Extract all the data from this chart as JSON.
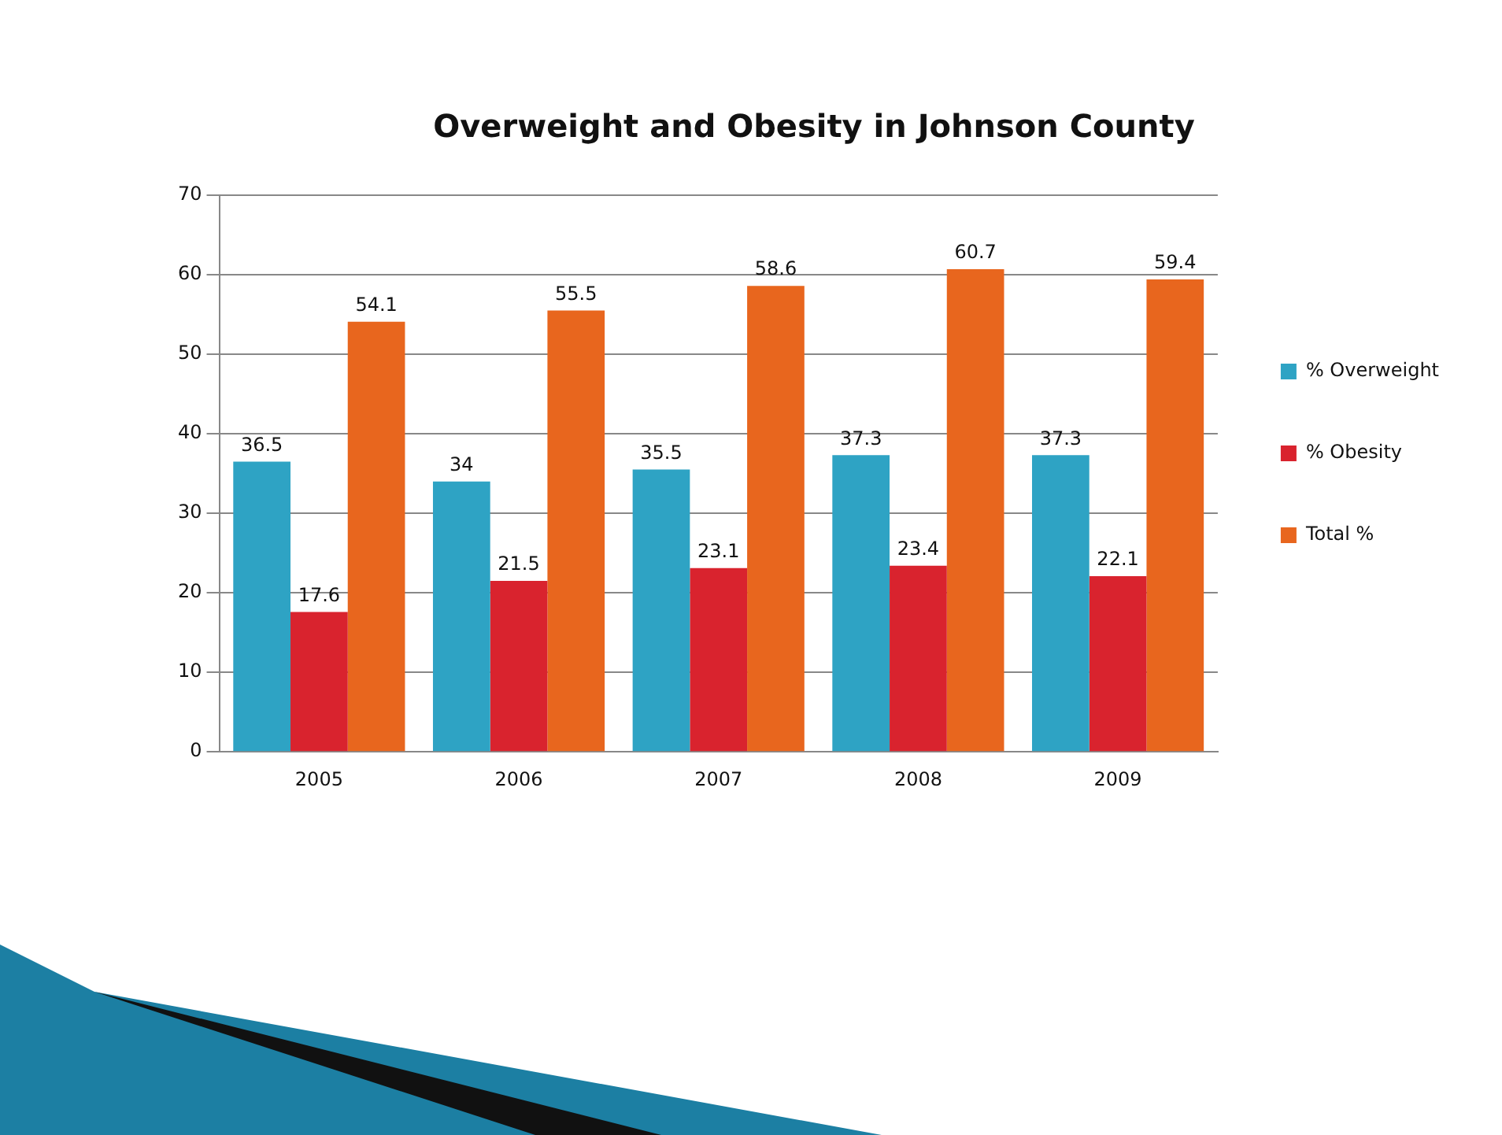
{
  "chart_data": {
    "type": "bar",
    "title": "Overweight and Obesity in Johnson County",
    "categories": [
      "2005",
      "2006",
      "2007",
      "2008",
      "2009"
    ],
    "series": [
      {
        "name": "% Overweight",
        "color": "#2ea3c4",
        "values": [
          36.5,
          34,
          35.5,
          37.3,
          37.3
        ]
      },
      {
        "name": "% Obesity",
        "color": "#d9232e",
        "values": [
          17.6,
          21.5,
          23.1,
          23.4,
          22.1
        ]
      },
      {
        "name": "Total %",
        "color": "#e8661e",
        "values": [
          54.1,
          55.5,
          58.6,
          60.7,
          59.4
        ]
      }
    ],
    "ylim": [
      0,
      70
    ],
    "yticks": [
      0,
      10,
      20,
      30,
      40,
      50,
      60,
      70
    ],
    "grid": "y",
    "legend": "right",
    "data_labels": true
  }
}
